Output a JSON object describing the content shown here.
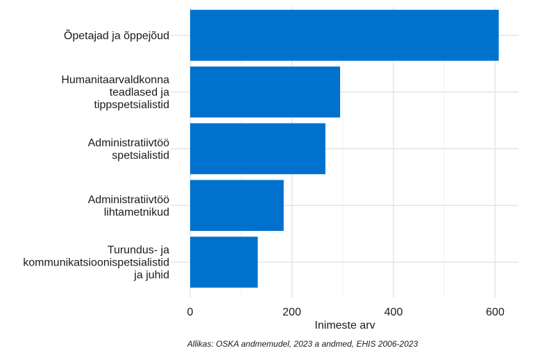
{
  "chart_data": {
    "type": "bar",
    "orientation": "horizontal",
    "categories": [
      [
        "Õpetajad ja õppejõud"
      ],
      [
        "Humanitaarvaldkonna",
        "teadlased ja",
        "tippspetsialistid"
      ],
      [
        "Administratiivtöö",
        "spetsialistid"
      ],
      [
        "Administratiivtöö",
        "lihtametnikud"
      ],
      [
        "Turundus- ja",
        "kommunikatsioonispetsialistid",
        "ja juhid"
      ]
    ],
    "values": [
      607,
      295,
      266,
      184,
      133
    ],
    "xlabel": "Inimeste arv",
    "ylabel": "",
    "xlim": [
      0,
      640
    ],
    "xticks": [
      0,
      200,
      400,
      600
    ],
    "grid": true,
    "bar_color": "#0072CE",
    "caption": "Allikas: OSKA andmemudel, 2023 a andmed, EHIS 2006-2023"
  }
}
